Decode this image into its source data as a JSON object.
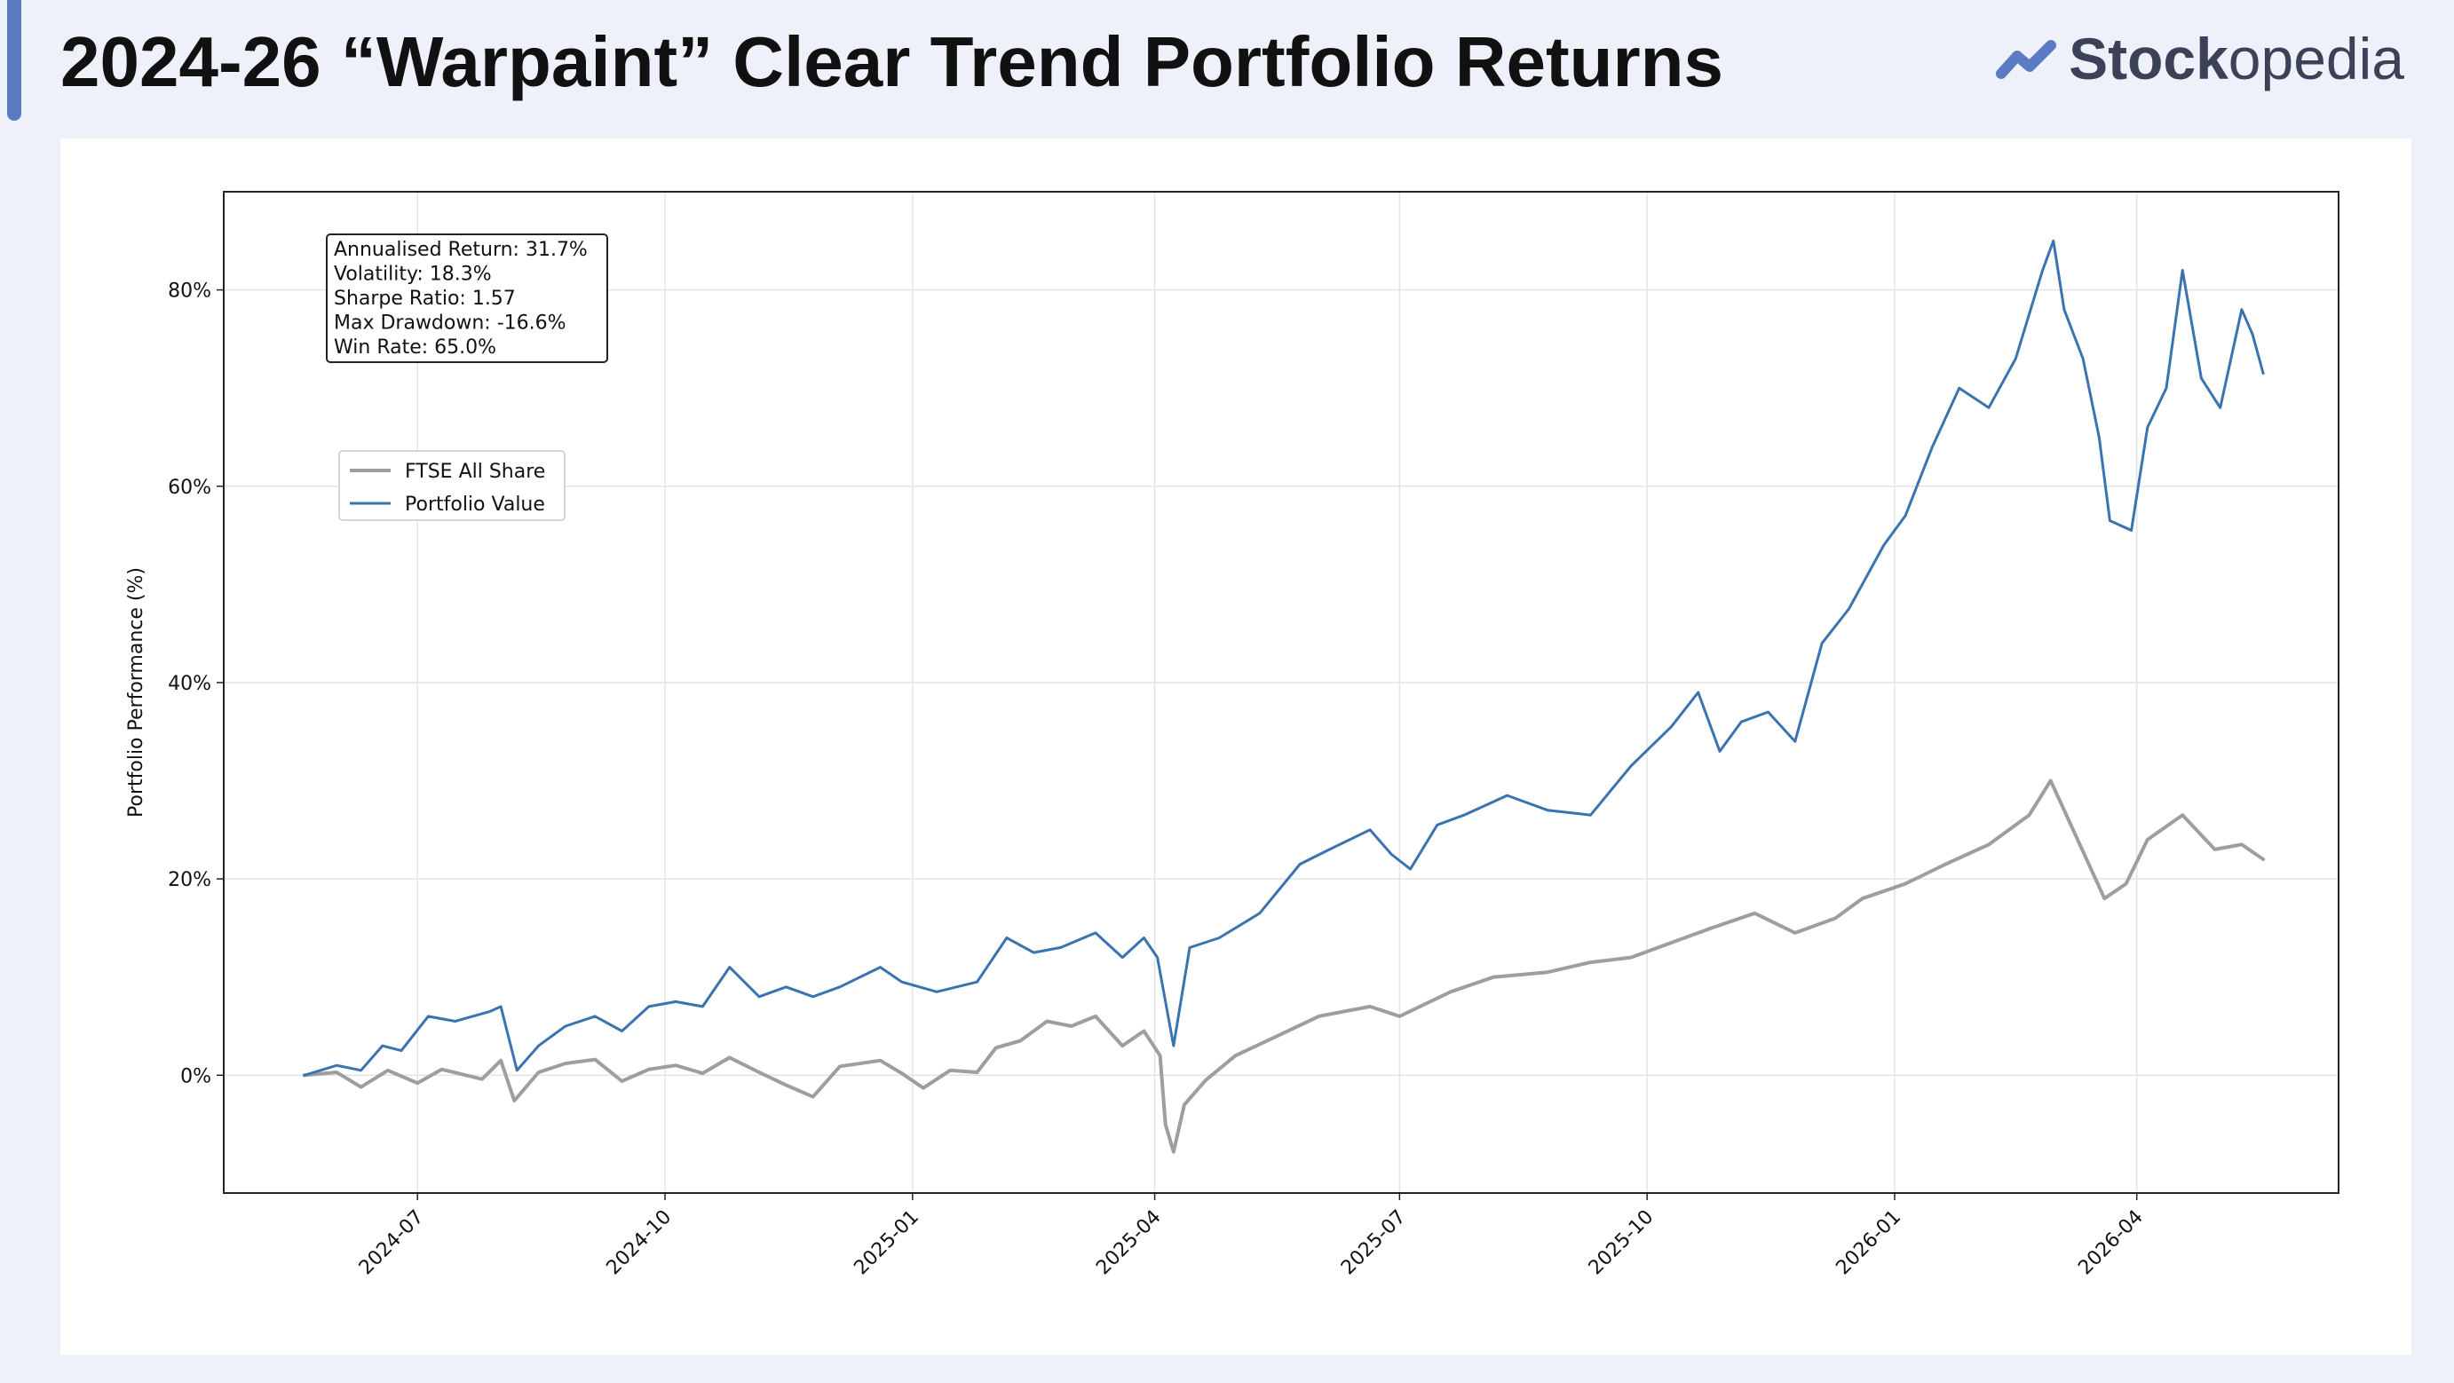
{
  "header": {
    "title": "2024-26 “Warpaint” Clear Trend Portfolio Returns",
    "brand_bold": "Stock",
    "brand_light": "opedia",
    "brand_icon": "stockopedia-logo-icon",
    "accent_color": "#5b7cc4"
  },
  "chart_data": {
    "type": "line",
    "xlabel": "",
    "ylabel": "Portfolio Performance (%)",
    "x_start": "2024-05-20",
    "x_end": "2026-05-18",
    "xlim": [
      "2024-04-20",
      "2026-06-15"
    ],
    "ylim": [
      -12,
      90
    ],
    "x_ticks": [
      "2024-07",
      "2024-10",
      "2025-01",
      "2025-04",
      "2025-07",
      "2025-10",
      "2026-01",
      "2026-04"
    ],
    "y_ticks": [
      0,
      20,
      40,
      60,
      80
    ],
    "y_tick_labels": [
      "0%",
      "20%",
      "40%",
      "60%",
      "80%"
    ],
    "grid": true,
    "legend_position": "upper-left",
    "stats_box": [
      "Annualised Return: 31.7%",
      "Volatility: 18.3%",
      "Sharpe Ratio: 1.57",
      "Max Drawdown: -16.6%",
      "Win Rate: 65.0%"
    ],
    "series": [
      {
        "name": "FTSE All Share",
        "color": "#9e9e9e",
        "points": [
          [
            "2024-05-20",
            0
          ],
          [
            "2024-06-01",
            0.3
          ],
          [
            "2024-06-10",
            -1.2
          ],
          [
            "2024-06-20",
            0.5
          ],
          [
            "2024-07-01",
            -0.8
          ],
          [
            "2024-07-10",
            0.6
          ],
          [
            "2024-07-25",
            -0.4
          ],
          [
            "2024-08-01",
            1.5
          ],
          [
            "2024-08-06",
            -2.6
          ],
          [
            "2024-08-15",
            0.3
          ],
          [
            "2024-08-25",
            1.2
          ],
          [
            "2024-09-05",
            1.6
          ],
          [
            "2024-09-15",
            -0.6
          ],
          [
            "2024-09-25",
            0.6
          ],
          [
            "2024-10-05",
            1.0
          ],
          [
            "2024-10-15",
            0.2
          ],
          [
            "2024-10-25",
            1.8
          ],
          [
            "2024-11-05",
            0.3
          ],
          [
            "2024-11-15",
            -1.0
          ],
          [
            "2024-11-25",
            -2.2
          ],
          [
            "2024-12-05",
            0.9
          ],
          [
            "2024-12-20",
            1.5
          ],
          [
            "2024-12-28",
            0.2
          ],
          [
            "2025-01-05",
            -1.3
          ],
          [
            "2025-01-15",
            0.5
          ],
          [
            "2025-01-25",
            0.3
          ],
          [
            "2025-02-01",
            2.8
          ],
          [
            "2025-02-10",
            3.5
          ],
          [
            "2025-02-20",
            5.5
          ],
          [
            "2025-03-01",
            5.0
          ],
          [
            "2025-03-10",
            6.0
          ],
          [
            "2025-03-20",
            3.0
          ],
          [
            "2025-03-28",
            4.5
          ],
          [
            "2025-04-03",
            2.0
          ],
          [
            "2025-04-05",
            -5.0
          ],
          [
            "2025-04-08",
            -7.8
          ],
          [
            "2025-04-12",
            -3.0
          ],
          [
            "2025-04-20",
            -0.5
          ],
          [
            "2025-05-01",
            2.0
          ],
          [
            "2025-05-15",
            3.8
          ],
          [
            "2025-06-01",
            6.0
          ],
          [
            "2025-06-20",
            7.0
          ],
          [
            "2025-07-01",
            6.0
          ],
          [
            "2025-07-20",
            8.5
          ],
          [
            "2025-08-05",
            10.0
          ],
          [
            "2025-08-25",
            10.5
          ],
          [
            "2025-09-10",
            11.5
          ],
          [
            "2025-09-25",
            12.0
          ],
          [
            "2025-10-10",
            13.5
          ],
          [
            "2025-10-25",
            15.0
          ],
          [
            "2025-11-10",
            16.5
          ],
          [
            "2025-11-25",
            14.5
          ],
          [
            "2025-12-10",
            16.0
          ],
          [
            "2025-12-20",
            18.0
          ],
          [
            "2026-01-05",
            19.5
          ],
          [
            "2026-01-20",
            21.5
          ],
          [
            "2026-02-05",
            23.5
          ],
          [
            "2026-02-20",
            26.5
          ],
          [
            "2026-02-28",
            30.0
          ],
          [
            "2026-03-05",
            27.0
          ],
          [
            "2026-03-15",
            21.0
          ],
          [
            "2026-03-20",
            18.0
          ],
          [
            "2026-03-28",
            19.5
          ],
          [
            "2026-04-05",
            24.0
          ],
          [
            "2026-04-18",
            26.5
          ],
          [
            "2026-04-30",
            23.0
          ],
          [
            "2026-05-10",
            23.5
          ],
          [
            "2026-05-18",
            22.0
          ]
        ]
      },
      {
        "name": "Portfolio Value",
        "color": "#3a74b0",
        "points": [
          [
            "2024-05-20",
            0
          ],
          [
            "2024-06-01",
            1.0
          ],
          [
            "2024-06-10",
            0.5
          ],
          [
            "2024-06-18",
            3.0
          ],
          [
            "2024-06-25",
            2.5
          ],
          [
            "2024-07-05",
            6.0
          ],
          [
            "2024-07-15",
            5.5
          ],
          [
            "2024-07-28",
            6.5
          ],
          [
            "2024-08-01",
            7.0
          ],
          [
            "2024-08-07",
            0.5
          ],
          [
            "2024-08-15",
            3.0
          ],
          [
            "2024-08-25",
            5.0
          ],
          [
            "2024-09-05",
            6.0
          ],
          [
            "2024-09-15",
            4.5
          ],
          [
            "2024-09-25",
            7.0
          ],
          [
            "2024-10-05",
            7.5
          ],
          [
            "2024-10-15",
            7.0
          ],
          [
            "2024-10-25",
            11.0
          ],
          [
            "2024-11-05",
            8.0
          ],
          [
            "2024-11-15",
            9.0
          ],
          [
            "2024-11-25",
            8.0
          ],
          [
            "2024-12-05",
            9.0
          ],
          [
            "2024-12-20",
            11.0
          ],
          [
            "2024-12-28",
            9.5
          ],
          [
            "2025-01-10",
            8.5
          ],
          [
            "2025-01-25",
            9.5
          ],
          [
            "2025-02-05",
            14.0
          ],
          [
            "2025-02-15",
            12.5
          ],
          [
            "2025-02-25",
            13.0
          ],
          [
            "2025-03-10",
            14.5
          ],
          [
            "2025-03-20",
            12.0
          ],
          [
            "2025-03-28",
            14.0
          ],
          [
            "2025-04-02",
            12.0
          ],
          [
            "2025-04-08",
            3.0
          ],
          [
            "2025-04-14",
            13.0
          ],
          [
            "2025-04-25",
            14.0
          ],
          [
            "2025-05-10",
            16.5
          ],
          [
            "2025-05-25",
            21.5
          ],
          [
            "2025-06-05",
            23.0
          ],
          [
            "2025-06-20",
            25.0
          ],
          [
            "2025-06-28",
            22.5
          ],
          [
            "2025-07-05",
            21.0
          ],
          [
            "2025-07-15",
            25.5
          ],
          [
            "2025-07-25",
            26.5
          ],
          [
            "2025-08-10",
            28.5
          ],
          [
            "2025-08-25",
            27.0
          ],
          [
            "2025-09-10",
            26.5
          ],
          [
            "2025-09-25",
            31.5
          ],
          [
            "2025-10-10",
            35.5
          ],
          [
            "2025-10-20",
            39.0
          ],
          [
            "2025-10-28",
            33.0
          ],
          [
            "2025-11-05",
            36.0
          ],
          [
            "2025-11-15",
            37.0
          ],
          [
            "2025-11-25",
            34.0
          ],
          [
            "2025-12-05",
            44.0
          ],
          [
            "2025-12-15",
            47.5
          ],
          [
            "2025-12-28",
            54.0
          ],
          [
            "2026-01-05",
            57.0
          ],
          [
            "2026-01-15",
            64.0
          ],
          [
            "2026-01-25",
            70.0
          ],
          [
            "2026-02-05",
            68.0
          ],
          [
            "2026-02-15",
            73.0
          ],
          [
            "2026-02-25",
            82.0
          ],
          [
            "2026-03-01",
            85.0
          ],
          [
            "2026-03-05",
            78.0
          ],
          [
            "2026-03-12",
            73.0
          ],
          [
            "2026-03-18",
            65.0
          ],
          [
            "2026-03-22",
            56.5
          ],
          [
            "2026-03-30",
            55.5
          ],
          [
            "2026-04-05",
            66.0
          ],
          [
            "2026-04-12",
            70.0
          ],
          [
            "2026-04-18",
            82.0
          ],
          [
            "2026-04-25",
            71.0
          ],
          [
            "2026-05-02",
            68.0
          ],
          [
            "2026-05-10",
            78.0
          ],
          [
            "2026-05-14",
            75.5
          ],
          [
            "2026-05-18",
            71.5
          ]
        ]
      }
    ]
  }
}
